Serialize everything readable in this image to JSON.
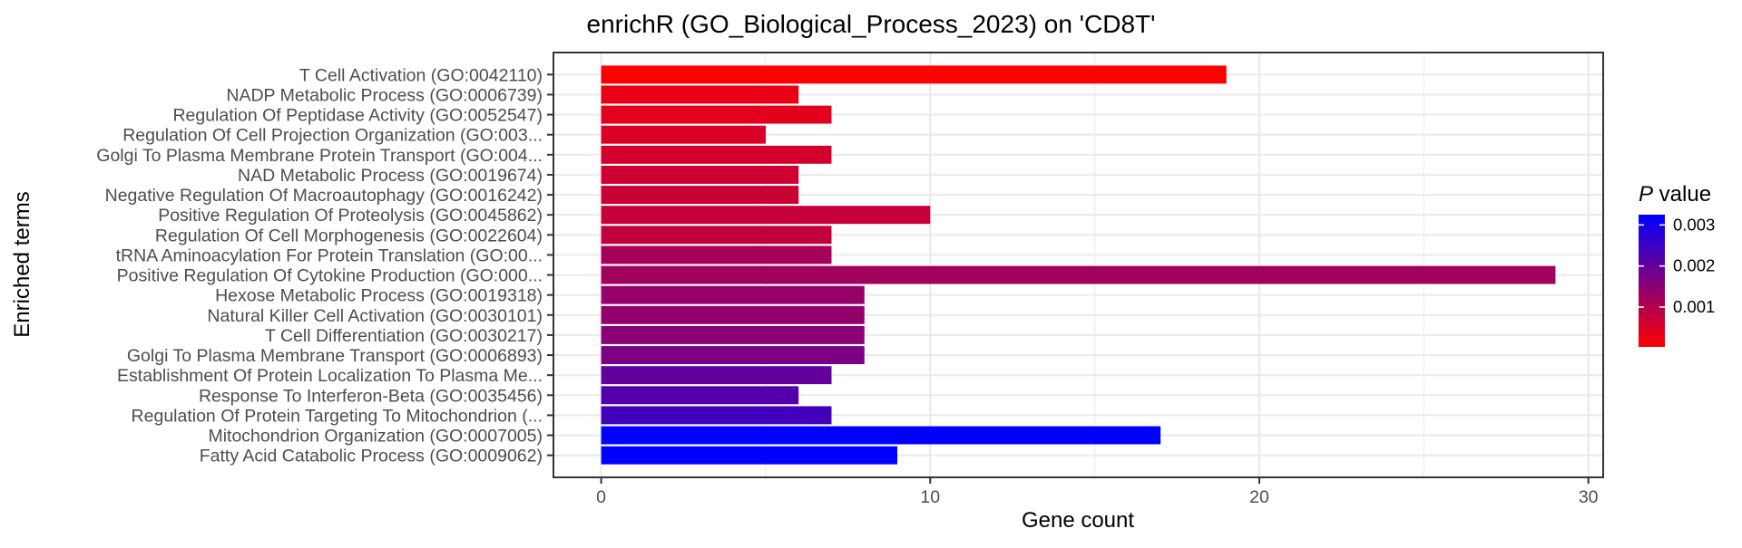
{
  "chart_data": {
    "type": "bar",
    "orientation": "horizontal",
    "title": "enrichR (GO_Biological_Process_2023) on 'CD8T'",
    "xlabel": "Gene count",
    "ylabel": "Enriched terms",
    "xlim": [
      -1.45,
      30.45
    ],
    "xticks": [
      0,
      10,
      20,
      30
    ],
    "grid": true,
    "legend": {
      "title_italic": "P",
      "title_rest": " value",
      "placement": "right",
      "ticks": [
        "0.001",
        "0.002",
        "0.003"
      ],
      "tick_values": [
        0.001,
        0.002,
        0.003
      ],
      "range": [
        3e-05,
        0.00325
      ],
      "low_color": "#ff0000",
      "high_color": "#0000ff"
    },
    "categories": [
      "T Cell Activation (GO:0042110)",
      "NADP Metabolic Process (GO:0006739)",
      "Regulation Of Peptidase Activity (GO:0052547)",
      "Regulation Of Cell Projection Organization (GO:003...",
      "Golgi To Plasma Membrane Protein Transport (GO:004...",
      "NAD Metabolic Process (GO:0019674)",
      "Negative Regulation Of Macroautophagy (GO:0016242)",
      "Positive Regulation Of Proteolysis (GO:0045862)",
      "Regulation Of Cell Morphogenesis (GO:0022604)",
      "tRNA Aminoacylation For Protein Translation (GO:00...",
      "Positive Regulation Of Cytokine Production (GO:000...",
      "Hexose Metabolic Process (GO:0019318)",
      "Natural Killer Cell Activation (GO:0030101)",
      "T Cell Differentiation (GO:0030217)",
      "Golgi To Plasma Membrane Transport (GO:0006893)",
      "Establishment Of Protein Localization To Plasma Me...",
      "Response To Interferon-Beta (GO:0035456)",
      "Regulation Of Protein Targeting To Mitochondrion (...",
      "Mitochondrion Organization (GO:0007005)",
      "Fatty Acid Catabolic Process (GO:0009062)"
    ],
    "values": [
      19,
      6,
      7,
      5,
      7,
      6,
      6,
      10,
      7,
      7,
      29,
      8,
      8,
      8,
      8,
      7,
      6,
      7,
      17,
      9
    ],
    "p_values": [
      3e-05,
      0.0003,
      0.0004,
      0.0005,
      0.0006,
      0.00065,
      0.0007,
      0.00075,
      0.0008,
      0.00115,
      0.0012,
      0.00135,
      0.0014,
      0.0015,
      0.0017,
      0.002,
      0.0022,
      0.0024,
      0.00325,
      0.00325
    ]
  }
}
